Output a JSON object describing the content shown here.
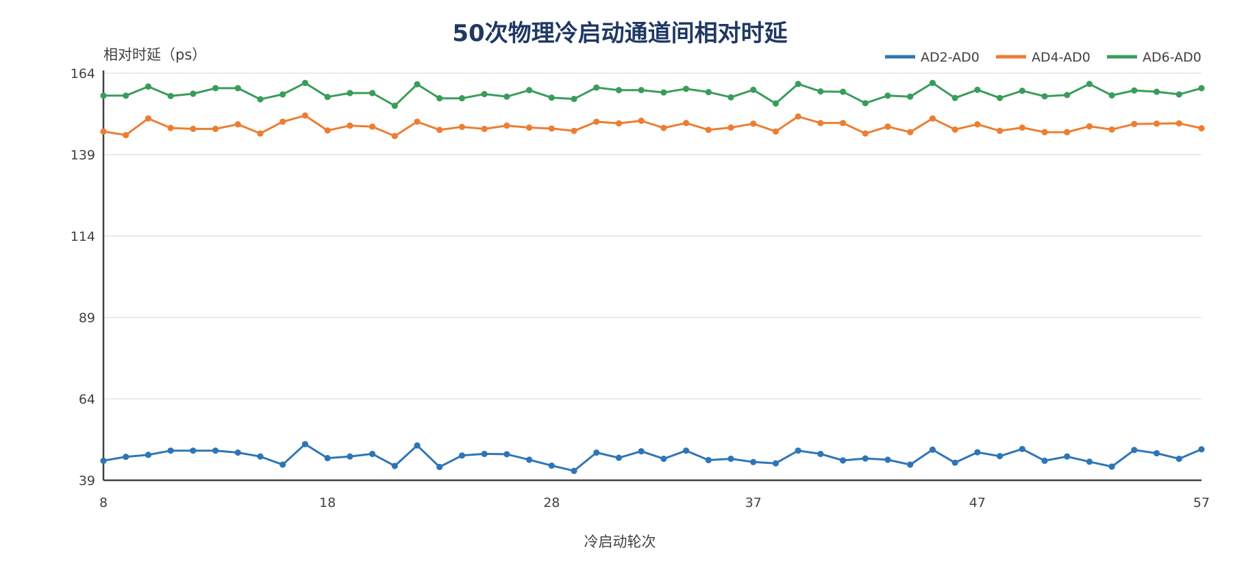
{
  "chart_data": {
    "type": "line",
    "title": "50次物理冷启动通道间相对时延",
    "ylabel": "相对时延（ps）",
    "xlabel": "冷启动轮次",
    "ylim": [
      39,
      164
    ],
    "y_ticks": [
      "164",
      "139",
      "114",
      "89",
      "64",
      "39"
    ],
    "x_ticks": [
      "8",
      "18",
      "28",
      "37",
      "47",
      "57"
    ],
    "grid": "horizontal",
    "legend_position": "top-right",
    "colors": [
      "#2e75b6",
      "#ed7d31",
      "#3a9c5a"
    ],
    "x": [
      8,
      9,
      10,
      11,
      12,
      13,
      14,
      15,
      16,
      17,
      18,
      19,
      20,
      21,
      22,
      23,
      24,
      25,
      26,
      27,
      28,
      29,
      30,
      31,
      32,
      33,
      34,
      35,
      36,
      37,
      38,
      39,
      40,
      41,
      42,
      43,
      44,
      45,
      46,
      47,
      48,
      49,
      50,
      51,
      52,
      53,
      54,
      55,
      56,
      57
    ],
    "series": [
      {
        "name": "AD2-AD0",
        "values": [
          45,
          46.2,
          46.8,
          48.1,
          48.1,
          48.1,
          47.5,
          46.3,
          43.8,
          50.1,
          45.8,
          46.3,
          47.1,
          43.4,
          49.7,
          43.1,
          46.6,
          47.1,
          47.0,
          45.3,
          43.5,
          41.9,
          47.5,
          45.9,
          47.9,
          45.6,
          48.1,
          45.2,
          45.6,
          44.6,
          44.2,
          48.1,
          47.1,
          45.1,
          45.7,
          45.3,
          43.8,
          48.4,
          44.4,
          47.6,
          46.4,
          48.6,
          45.0,
          46.3,
          44.7,
          43.2,
          48.3,
          47.3,
          45.6,
          48.5
        ]
      },
      {
        "name": "AD4-AD0",
        "values": [
          146.1,
          145.0,
          150.1,
          147.2,
          146.9,
          146.9,
          148.3,
          145.5,
          149.1,
          151.0,
          146.4,
          147.9,
          147.6,
          144.7,
          149.1,
          146.6,
          147.5,
          146.9,
          147.9,
          147.3,
          147.0,
          146.3,
          149.1,
          148.6,
          149.4,
          147.2,
          148.7,
          146.6,
          147.3,
          148.5,
          146.1,
          150.7,
          148.7,
          148.7,
          145.5,
          147.6,
          145.9,
          150.1,
          146.7,
          148.3,
          146.3,
          147.3,
          145.9,
          145.9,
          147.7,
          146.7,
          148.4,
          148.5,
          148.6,
          147.1
        ]
      },
      {
        "name": "AD6-AD0",
        "values": [
          157.1,
          157.1,
          159.9,
          157.0,
          157.7,
          159.4,
          159.4,
          156.0,
          157.5,
          161.0,
          156.7,
          157.9,
          157.9,
          154.0,
          160.6,
          156.3,
          156.3,
          157.6,
          156.8,
          158.8,
          156.5,
          156.1,
          159.6,
          158.8,
          158.8,
          158.1,
          159.2,
          158.2,
          156.6,
          158.9,
          154.7,
          160.7,
          158.4,
          158.3,
          154.8,
          157.1,
          156.8,
          161.0,
          156.4,
          158.9,
          156.4,
          158.6,
          156.9,
          157.3,
          160.7,
          157.2,
          158.7,
          158.3,
          157.5,
          159.4
        ]
      }
    ]
  }
}
